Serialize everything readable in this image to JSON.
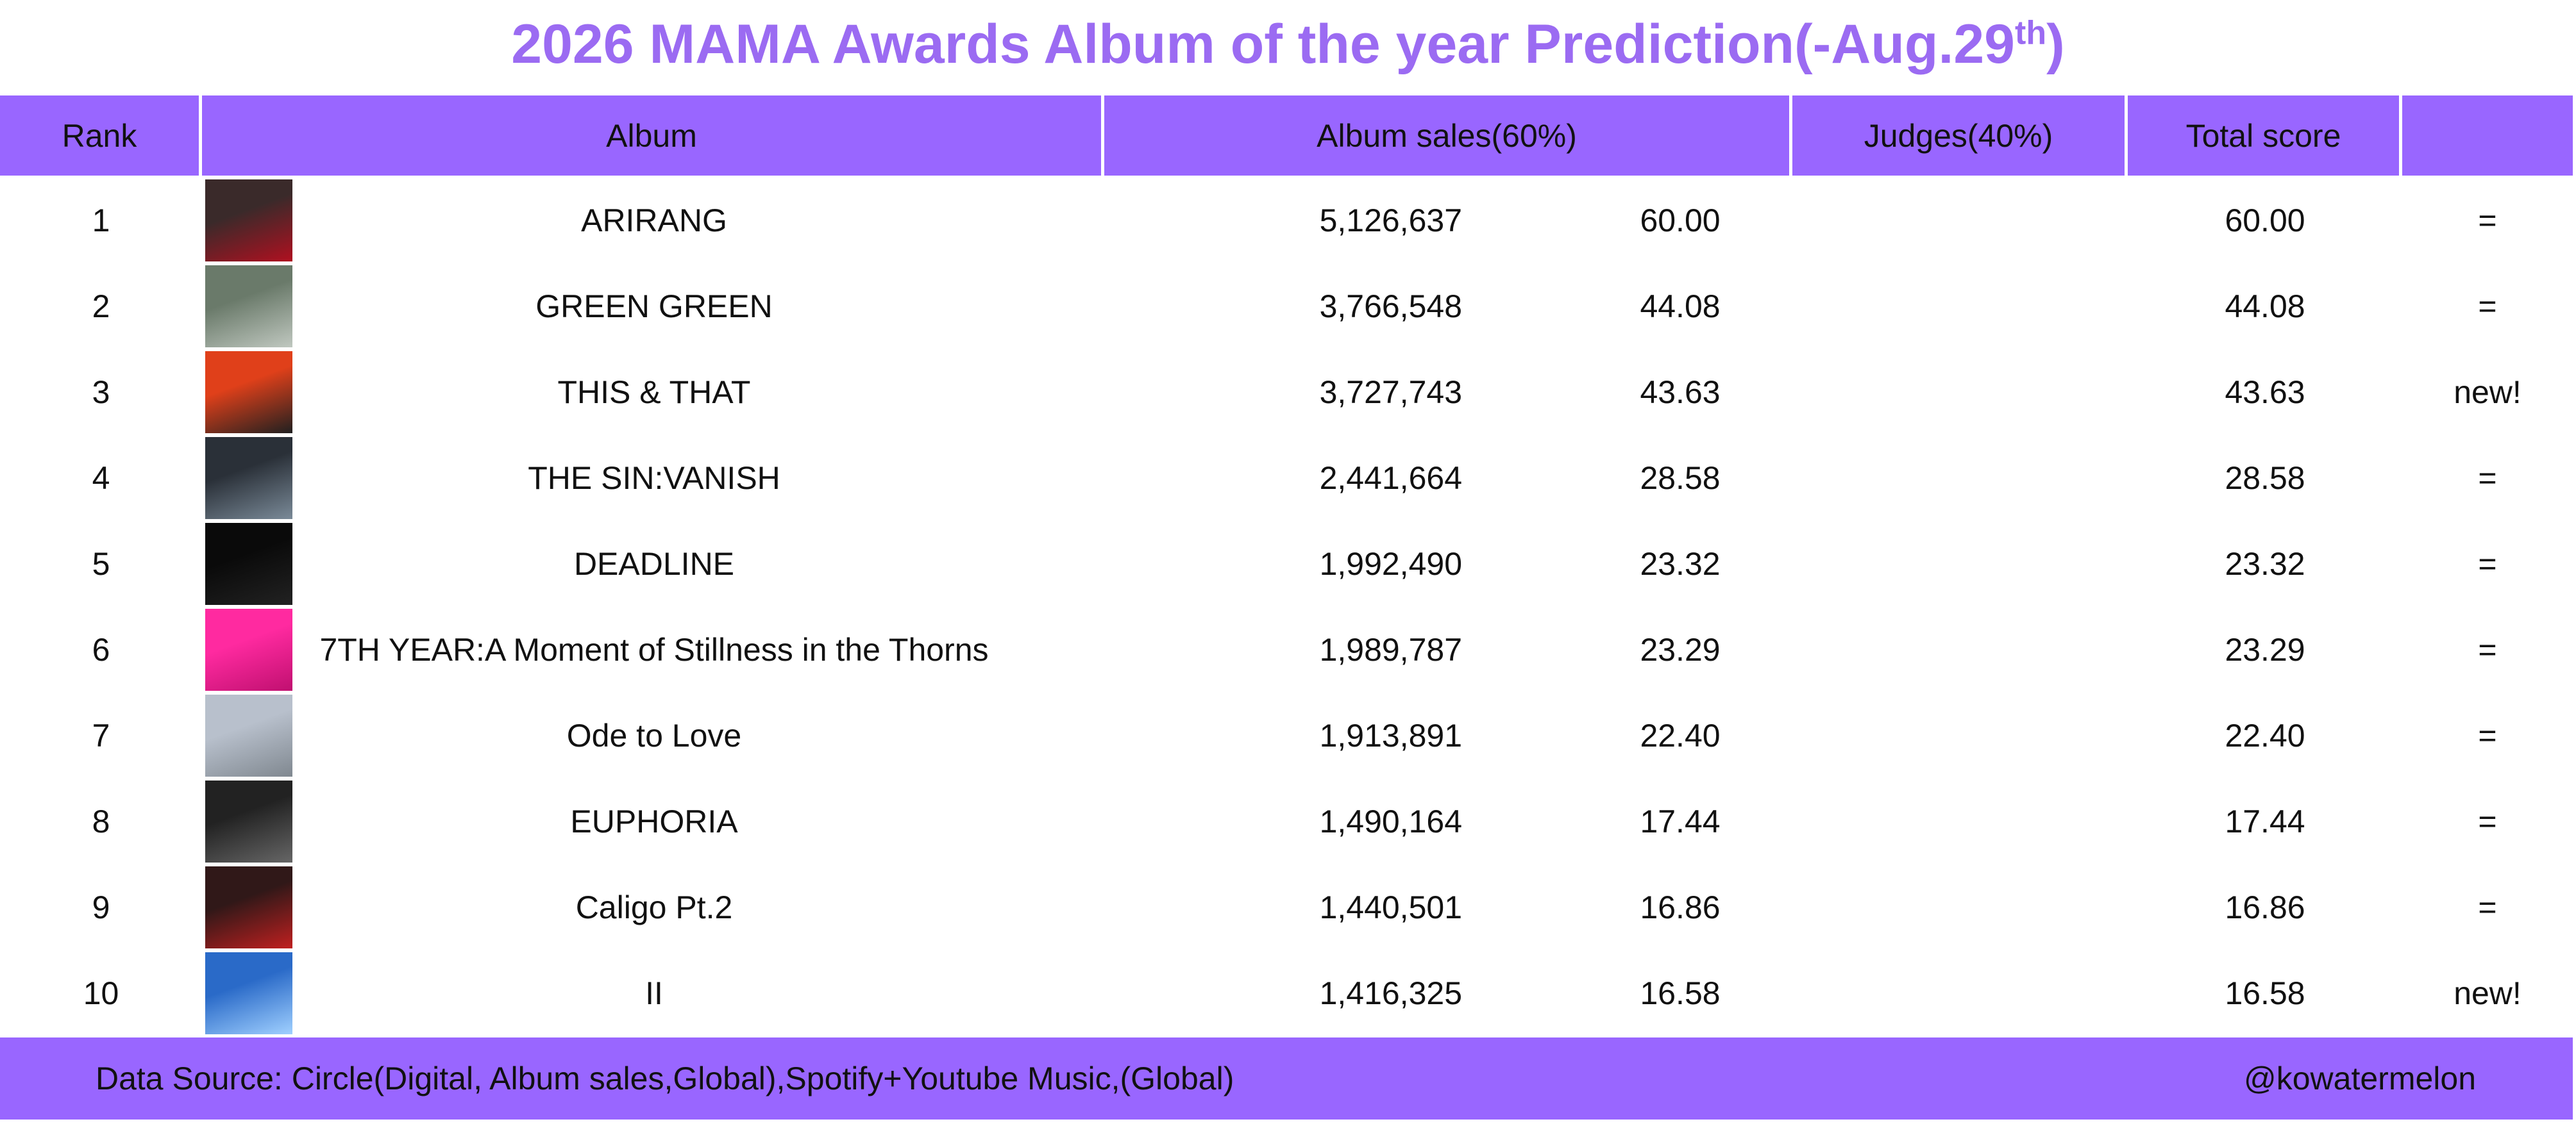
{
  "header": {
    "title": "2026 MAMA Awards Album of the year Prediction(-Aug.29",
    "title_sup": "th",
    "title_end": ")"
  },
  "table": {
    "columns": [
      "Rank",
      "Album",
      "Album sales(60%)",
      "Judges(40%)",
      "Total score"
    ],
    "rows": [
      {
        "rank": "1",
        "album": "ARIRANG",
        "sales": "5,126,637",
        "score": "60.00",
        "total": "60.00",
        "change": "="
      },
      {
        "rank": "2",
        "album": "GREEN GREEN",
        "sales": "3,766,548",
        "score": "44.08",
        "total": "44.08",
        "change": "="
      },
      {
        "rank": "3",
        "album": "THIS & THAT",
        "sales": "3,727,743",
        "score": "43.63",
        "total": "43.63",
        "change": "new!"
      },
      {
        "rank": "4",
        "album": "THE SIN:VANISH",
        "sales": "2,441,664",
        "score": "28.58",
        "total": "28.58",
        "change": "="
      },
      {
        "rank": "5",
        "album": "DEADLINE",
        "sales": "1,992,490",
        "score": "23.32",
        "total": "23.32",
        "change": "="
      },
      {
        "rank": "6",
        "album": "7TH YEAR:A Moment of Stillness in the Thorns",
        "sales": "1,989,787",
        "score": "23.29",
        "total": "23.29",
        "change": "="
      },
      {
        "rank": "7",
        "album": "Ode to Love",
        "sales": "1,913,891",
        "score": "22.40",
        "total": "22.40",
        "change": "="
      },
      {
        "rank": "8",
        "album": "EUPHORIA",
        "sales": "1,490,164",
        "score": "17.44",
        "total": "17.44",
        "change": "="
      },
      {
        "rank": "9",
        "album": "Caligo Pt.2",
        "sales": "1,440,501",
        "score": "16.86",
        "total": "16.86",
        "change": "="
      },
      {
        "rank": "10",
        "album": "II",
        "sales": "1,416,325",
        "score": "16.58",
        "total": "16.58",
        "change": "new!"
      }
    ]
  },
  "footer": {
    "source": "Data Source: Circle(Digital, Album sales,Global),Spotify+Youtube Music,(Global)",
    "handle": "@kowatermelon"
  }
}
